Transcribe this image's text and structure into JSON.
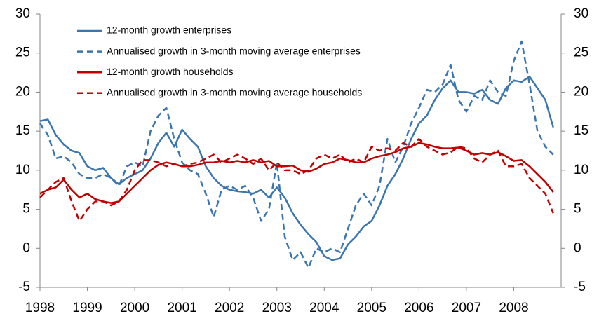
{
  "chart_data": {
    "type": "line",
    "categories": [
      "1998",
      null,
      null,
      null,
      null,
      null,
      "1999",
      null,
      null,
      null,
      null,
      null,
      "2000",
      null,
      null,
      null,
      null,
      null,
      "2001",
      null,
      null,
      null,
      null,
      null,
      "2002",
      null,
      null,
      null,
      null,
      null,
      "2003",
      null,
      null,
      null,
      null,
      null,
      "2004",
      null,
      null,
      null,
      null,
      null,
      "2005",
      null,
      null,
      null,
      null,
      null,
      "2006",
      null,
      null,
      null,
      null,
      null,
      "2007",
      null,
      null,
      null,
      null,
      null,
      "2008",
      null,
      null,
      null,
      null,
      null
    ],
    "series": [
      {
        "name": "12-month growth enterprises",
        "color": "#3b75b0",
        "dash": false,
        "values": [
          16.3,
          16.5,
          14.5,
          13.3,
          12.5,
          12.2,
          10.5,
          10.0,
          10.3,
          9.0,
          8.2,
          9.0,
          9.5,
          10.0,
          11.5,
          13.5,
          14.8,
          13.0,
          15.2,
          14.0,
          13.0,
          10.5,
          9.0,
          8.0,
          7.5,
          7.3,
          7.2,
          7.0,
          7.5,
          6.5,
          7.8,
          6.5,
          4.5,
          3.0,
          1.8,
          0.8,
          -1.0,
          -1.5,
          -1.3,
          0.5,
          1.5,
          2.8,
          3.5,
          5.5,
          8.0,
          9.5,
          11.5,
          14.0,
          16.0,
          17.0,
          19.0,
          20.5,
          21.5,
          20.0,
          20.0,
          19.8,
          20.3,
          19.0,
          18.5,
          20.5,
          21.5,
          21.3,
          22.0,
          20.5,
          19.0,
          15.5
        ]
      },
      {
        "name": "Annualised growth in 3-month moving average enterprises",
        "color": "#3b75b0",
        "dash": true,
        "values": [
          16.0,
          14.5,
          11.5,
          11.8,
          11.0,
          9.5,
          9.0,
          9.0,
          9.5,
          9.0,
          8.0,
          10.5,
          11.0,
          10.5,
          15.0,
          17.0,
          18.0,
          14.0,
          11.0,
          10.0,
          9.5,
          7.0,
          4.0,
          7.5,
          8.0,
          7.5,
          8.0,
          6.5,
          3.5,
          5.0,
          11.0,
          1.5,
          -1.5,
          -0.5,
          -2.5,
          0.0,
          -0.5,
          0.0,
          -0.5,
          2.5,
          5.5,
          7.0,
          5.5,
          8.0,
          14.0,
          11.0,
          13.0,
          16.0,
          18.0,
          20.3,
          20.0,
          21.0,
          23.5,
          19.0,
          17.5,
          19.5,
          19.0,
          21.5,
          20.0,
          19.5,
          24.0,
          26.5,
          21.0,
          15.0,
          13.0,
          12.0
        ]
      },
      {
        "name": "12-month growth households",
        "color": "#c00000",
        "dash": false,
        "values": [
          7.0,
          7.5,
          7.8,
          8.8,
          7.5,
          6.5,
          7.0,
          6.3,
          6.0,
          5.8,
          6.0,
          7.0,
          8.0,
          9.0,
          10.0,
          10.7,
          11.0,
          10.8,
          10.5,
          10.5,
          10.7,
          11.0,
          11.0,
          11.2,
          11.0,
          11.2,
          11.0,
          11.3,
          11.0,
          11.2,
          10.5,
          10.5,
          10.6,
          10.0,
          9.8,
          10.2,
          10.8,
          11.0,
          11.5,
          11.3,
          11.0,
          11.0,
          11.5,
          11.8,
          12.0,
          12.3,
          12.8,
          13.0,
          13.5,
          13.3,
          13.0,
          12.8,
          12.8,
          12.9,
          12.5,
          12.0,
          12.2,
          12.0,
          12.3,
          11.8,
          11.2,
          11.3,
          10.5,
          9.5,
          8.5,
          7.2
        ]
      },
      {
        "name": "Annualised growth in 3-month moving average households",
        "color": "#c00000",
        "dash": true,
        "values": [
          6.5,
          7.5,
          8.5,
          9.0,
          6.0,
          3.5,
          5.0,
          6.0,
          6.0,
          5.5,
          6.0,
          7.5,
          10.0,
          11.3,
          11.3,
          11.0,
          10.5,
          10.8,
          10.5,
          10.8,
          11.0,
          11.5,
          12.0,
          11.0,
          11.5,
          12.0,
          11.5,
          10.8,
          11.5,
          10.0,
          11.0,
          10.0,
          10.0,
          9.5,
          10.0,
          11.5,
          12.0,
          11.5,
          12.0,
          11.0,
          11.5,
          11.0,
          13.0,
          12.5,
          12.8,
          12.5,
          13.5,
          13.0,
          14.0,
          13.0,
          12.5,
          12.0,
          12.3,
          13.0,
          12.8,
          11.5,
          11.0,
          12.0,
          12.5,
          10.5,
          10.5,
          10.8,
          9.0,
          8.0,
          7.0,
          4.5
        ]
      }
    ],
    "ylim": [
      -5,
      30
    ],
    "yticks": [
      -5,
      0,
      5,
      10,
      15,
      20,
      25,
      30
    ],
    "y2lim": [
      -5,
      30
    ],
    "y2ticks": [
      -5,
      0,
      5,
      10,
      15,
      20,
      25,
      30
    ],
    "grid": false,
    "legend": "upper left"
  }
}
